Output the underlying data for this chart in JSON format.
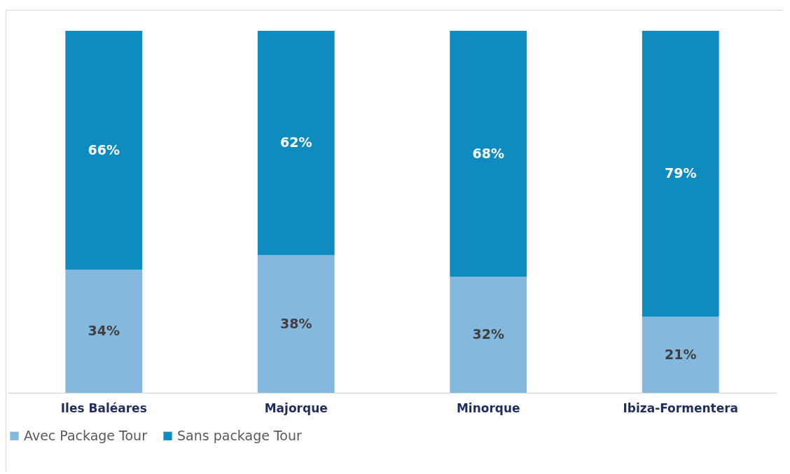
{
  "chart_data": {
    "type": "bar",
    "stacked": true,
    "categories": [
      "Iles Baléares",
      "Majorque",
      "Minorque",
      "Ibiza-Formentera"
    ],
    "series": [
      {
        "name": "Avec Package Tour",
        "color": "#85b8df",
        "values": [
          34,
          38,
          32,
          21
        ],
        "value_labels": [
          "34%",
          "38%",
          "32%",
          "21%"
        ]
      },
      {
        "name": "Sans package Tour",
        "color": "#0e8cc0",
        "values": [
          66,
          62,
          68,
          79
        ],
        "value_labels": [
          "66%",
          "62%",
          "68%",
          "79%"
        ]
      }
    ],
    "legend": "bottom",
    "grid": false
  }
}
